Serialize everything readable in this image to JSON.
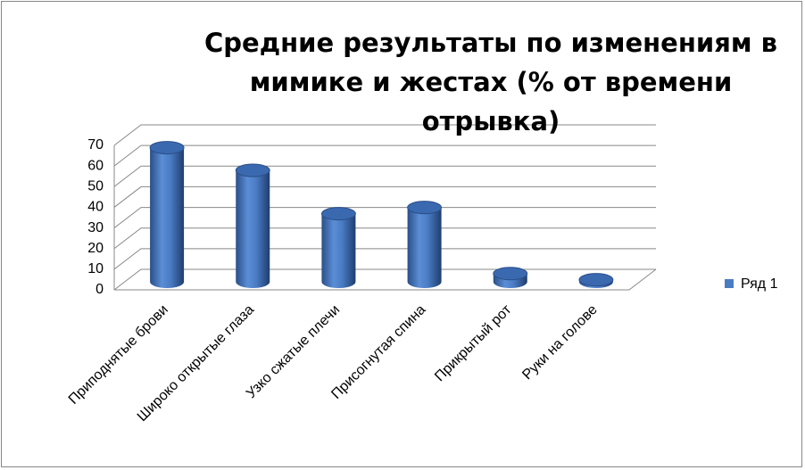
{
  "chart_data": {
    "type": "bar",
    "title": "Средние результаты по изменениям в мимике и жестах (% от времени отрывка)",
    "categories": [
      "Приподнятые брови",
      "Широко открытые глаза",
      "Узко сжатые плечи",
      "Присогнутая спина",
      "Прикрытый рот",
      "Руки на голове"
    ],
    "series": [
      {
        "name": "Ряд 1",
        "color": "#4a7cc4",
        "values": [
          65,
          54,
          33,
          36,
          4,
          1
        ]
      }
    ],
    "ylim": [
      0,
      70
    ],
    "yticks": [
      0,
      10,
      20,
      30,
      40,
      50,
      60,
      70
    ],
    "grid": true,
    "legend": "right"
  }
}
